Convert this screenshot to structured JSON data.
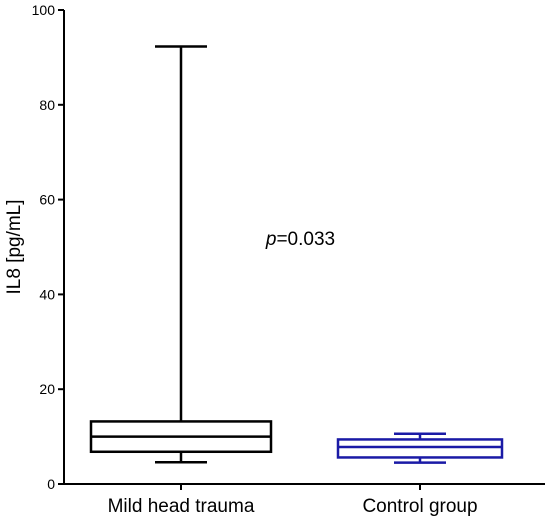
{
  "chart_data": {
    "type": "box",
    "title": "",
    "xlabel": "",
    "ylabel": "IL8 [pg/mL]",
    "ylim": [
      0,
      100
    ],
    "yticks": [
      0,
      20,
      40,
      60,
      80,
      100
    ],
    "grid": false,
    "categories": [
      "Mild head trauma",
      "Control group"
    ],
    "series": [
      {
        "category": "Mild head trauma",
        "min": 4.6,
        "q1": 6.8,
        "median": 10.0,
        "q3": 13.2,
        "max": 92.3,
        "color": "#000000"
      },
      {
        "category": "Control group",
        "min": 4.5,
        "q1": 5.6,
        "median": 7.8,
        "q3": 9.4,
        "max": 10.6,
        "color": "#1a1aa6"
      }
    ],
    "annotation": {
      "italic_part": "p",
      "rest": "=0.033",
      "y_value": 50.4,
      "between_categories": true
    }
  }
}
